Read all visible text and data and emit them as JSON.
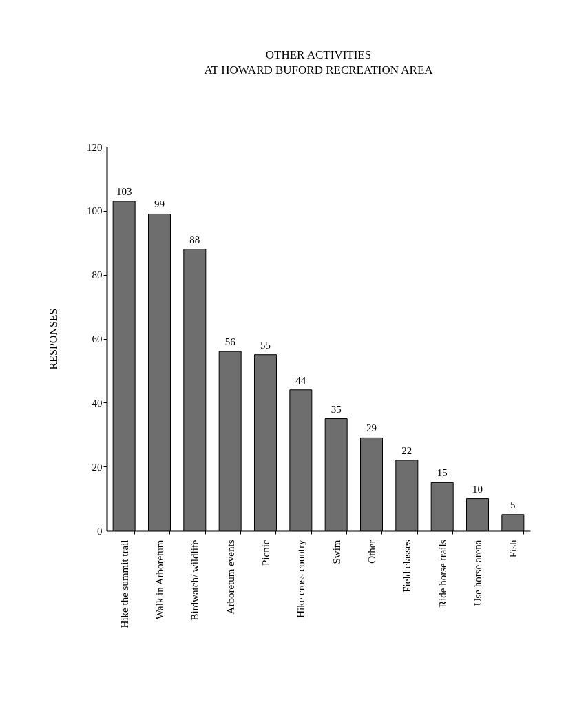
{
  "chart_data": {
    "type": "bar",
    "title": "OTHER ACTIVITIES\nAT HOWARD BUFORD RECREATION AREA",
    "ylabel": "RESPONSES",
    "categories": [
      "Hike the summit trail",
      "Walk in Arboretum",
      "Birdwatch/ wildlife",
      "Arboretum events",
      "Picnic",
      "Hike cross country",
      "Swim",
      "Other",
      "Field classes",
      "Ride horse trails",
      "Use horse arena",
      "Fish"
    ],
    "values": [
      103,
      99,
      88,
      56,
      55,
      44,
      35,
      29,
      22,
      15,
      10,
      5
    ],
    "color": "#6e6e6e",
    "ylim": [
      0,
      120
    ],
    "yticks": [
      0,
      20,
      40,
      60,
      80,
      100,
      120
    ],
    "data_labels": true,
    "grid": false
  }
}
